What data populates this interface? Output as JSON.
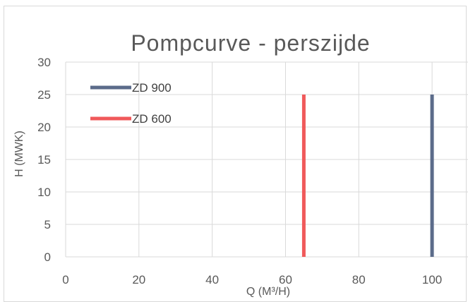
{
  "chart_data": {
    "type": "line",
    "title": "Pompcurve - perszijde",
    "xlabel": "Q (M³/H)",
    "ylabel": "H (MWK)",
    "xlim": [
      0,
      110
    ],
    "ylim": [
      0,
      30
    ],
    "xticks": [
      0,
      20,
      40,
      60,
      80,
      100
    ],
    "yticks": [
      0,
      5,
      10,
      15,
      20,
      25,
      30
    ],
    "grid": true,
    "legend_position": "top-left",
    "series": [
      {
        "name": "ZD 900",
        "color": "#5B6B8A",
        "x": [
          100,
          100
        ],
        "y": [
          0,
          25
        ]
      },
      {
        "name": "ZD 600",
        "color": "#F0595A",
        "x": [
          65,
          65
        ],
        "y": [
          0,
          25
        ]
      }
    ]
  }
}
